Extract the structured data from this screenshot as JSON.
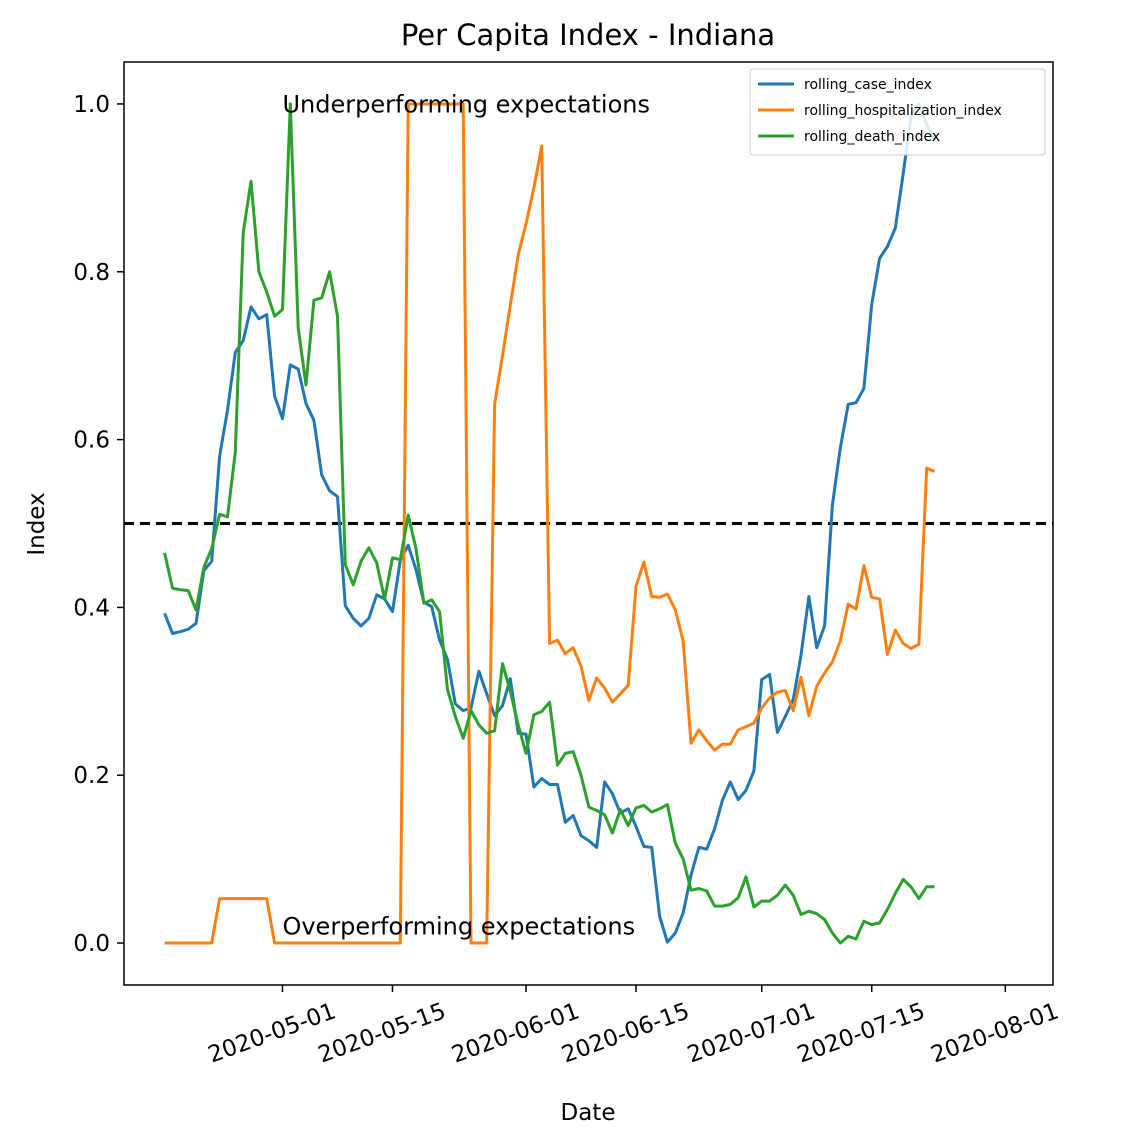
{
  "chart_data": {
    "type": "line",
    "title": "Per Capita Index - Indiana",
    "xlabel": "Date",
    "ylabel": "Index",
    "x_ticks": [
      "2020-05-01",
      "2020-05-15",
      "2020-06-01",
      "2020-06-15",
      "2020-07-01",
      "2020-07-15",
      "2020-08-01"
    ],
    "y_ticks": [
      "0.0",
      "0.2",
      "0.4",
      "0.6",
      "0.8",
      "1.0"
    ],
    "xlim": [
      "2020-04-16",
      "2020-08-01"
    ],
    "ylim": [
      -0.05,
      1.05
    ],
    "grid": false,
    "legend_position": "top-right",
    "reference_line": {
      "y": 0.5,
      "style": "dashed",
      "color": "#000000"
    },
    "annotations": [
      {
        "text": "Underperforming expectations",
        "x": "2020-05-01",
        "y": 0.99
      },
      {
        "text": "Overperforming expectations",
        "x": "2020-05-01",
        "y": 0.01
      }
    ],
    "x_start": "2020-04-16",
    "series": [
      {
        "name": "rolling_case_index",
        "color": "#1f77b4",
        "values": [
          0.393,
          0.369,
          0.371,
          0.374,
          0.381,
          0.444,
          0.455,
          0.58,
          0.635,
          0.704,
          0.718,
          0.758,
          0.744,
          0.749,
          0.652,
          0.625,
          0.689,
          0.684,
          0.643,
          0.623,
          0.558,
          0.539,
          0.532,
          0.402,
          0.387,
          0.378,
          0.387,
          0.415,
          0.41,
          0.395,
          0.456,
          0.474,
          0.445,
          0.406,
          0.401,
          0.361,
          0.338,
          0.285,
          0.277,
          0.28,
          0.324,
          0.297,
          0.271,
          0.283,
          0.315,
          0.25,
          0.249,
          0.186,
          0.196,
          0.189,
          0.189,
          0.144,
          0.152,
          0.128,
          0.122,
          0.114,
          0.192,
          0.178,
          0.155,
          0.16,
          0.139,
          0.115,
          0.114,
          0.032,
          0.001,
          0.012,
          0.036,
          0.081,
          0.114,
          0.112,
          0.136,
          0.17,
          0.192,
          0.171,
          0.182,
          0.205,
          0.314,
          0.32,
          0.251,
          0.27,
          0.29,
          0.343,
          0.413,
          0.352,
          0.378,
          0.522,
          0.59,
          0.642,
          0.644,
          0.661,
          0.761,
          0.816,
          0.83,
          0.852,
          0.917,
          0.985,
          1.0,
          0.976,
          0.957
        ]
      },
      {
        "name": "rolling_hospitalization_index",
        "color": "#ff7f0e",
        "values": [
          0.0,
          0.0,
          0.0,
          0.0,
          0.0,
          0.0,
          0.0,
          0.053,
          0.053,
          0.053,
          0.053,
          0.053,
          0.053,
          0.053,
          0.0,
          0.0,
          0.0,
          0.0,
          0.0,
          0.0,
          0.0,
          0.0,
          0.0,
          0.0,
          0.0,
          0.0,
          0.0,
          0.0,
          0.0,
          0.0,
          0.0,
          1.0,
          1.0,
          1.0,
          1.0,
          1.0,
          1.0,
          1.0,
          1.0,
          0.0,
          0.0,
          0.0,
          0.642,
          0.7,
          0.76,
          0.82,
          0.857,
          0.9,
          0.95,
          0.357,
          0.361,
          0.345,
          0.352,
          0.33,
          0.289,
          0.316,
          0.304,
          0.287,
          0.297,
          0.307,
          0.425,
          0.454,
          0.413,
          0.412,
          0.416,
          0.397,
          0.36,
          0.238,
          0.254,
          0.241,
          0.23,
          0.237,
          0.237,
          0.254,
          0.258,
          0.262,
          0.28,
          0.292,
          0.299,
          0.301,
          0.277,
          0.317,
          0.271,
          0.306,
          0.322,
          0.335,
          0.36,
          0.404,
          0.398,
          0.45,
          0.412,
          0.41,
          0.344,
          0.373,
          0.357,
          0.351,
          0.356,
          0.566,
          0.562
        ]
      },
      {
        "name": "rolling_death_index",
        "color": "#2ca02c",
        "values": [
          0.465,
          0.423,
          0.421,
          0.42,
          0.397,
          0.448,
          0.47,
          0.511,
          0.508,
          0.585,
          0.846,
          0.908,
          0.8,
          0.776,
          0.747,
          0.755,
          1.0,
          0.733,
          0.665,
          0.766,
          0.769,
          0.8,
          0.747,
          0.451,
          0.427,
          0.455,
          0.471,
          0.453,
          0.41,
          0.459,
          0.457,
          0.51,
          0.47,
          0.405,
          0.409,
          0.395,
          0.302,
          0.27,
          0.244,
          0.277,
          0.26,
          0.25,
          0.253,
          0.333,
          0.3,
          0.26,
          0.226,
          0.272,
          0.276,
          0.287,
          0.212,
          0.226,
          0.228,
          0.2,
          0.162,
          0.158,
          0.153,
          0.131,
          0.159,
          0.14,
          0.161,
          0.164,
          0.156,
          0.16,
          0.165,
          0.119,
          0.1,
          0.063,
          0.065,
          0.062,
          0.044,
          0.044,
          0.046,
          0.054,
          0.079,
          0.043,
          0.05,
          0.05,
          0.057,
          0.069,
          0.057,
          0.034,
          0.038,
          0.035,
          0.028,
          0.012,
          0.0,
          0.008,
          0.005,
          0.026,
          0.022,
          0.024,
          0.04,
          0.059,
          0.076,
          0.067,
          0.053,
          0.067,
          0.067
        ]
      }
    ]
  }
}
